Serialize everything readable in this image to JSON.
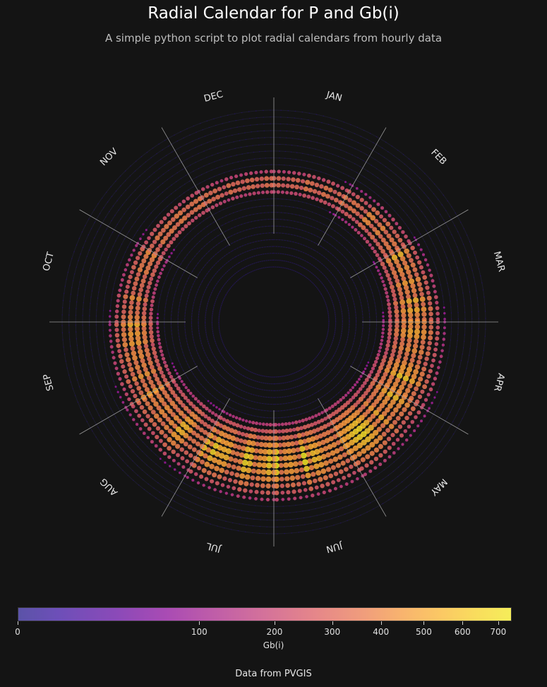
{
  "title": "Radial Calendar for P and Gb(i)",
  "subtitle": "A simple python script to plot radial calendars from hourly data",
  "footnote": "Data from PVGIS",
  "chart_data": {
    "type": "scatter",
    "projection": "polar",
    "title": "Radial Calendar for P and Gb(i)",
    "subtitle": "A simple python script to plot radial calendars from hourly data",
    "angular_axis": "month",
    "radial_axis": "hour of day",
    "direction": "clockwise",
    "start": "top",
    "months": [
      "JAN",
      "FEB",
      "MAR",
      "APR",
      "MAY",
      "JUN",
      "JUL",
      "AUG",
      "SEP",
      "OCT",
      "NOV",
      "DEC"
    ],
    "hours": [
      0,
      1,
      2,
      3,
      4,
      5,
      6,
      7,
      8,
      9,
      10,
      11,
      12,
      13,
      14,
      15,
      16,
      17,
      18,
      19,
      20,
      21,
      22,
      23
    ],
    "grid": true,
    "month_dividers": true,
    "color_variable": "Gb(i)",
    "colormap": "plasma",
    "colorbar": {
      "label": "Gb(i)",
      "position": "bottom",
      "range": [
        0,
        740
      ],
      "ticks": [
        0,
        100,
        200,
        300,
        400,
        500,
        600,
        700
      ],
      "tick_labels": [
        "0",
        "100",
        "200",
        "300",
        "400",
        "500",
        "600",
        "700"
      ],
      "scale": "sqrt"
    },
    "approx_peak_gb_by_month": [
      460,
      520,
      650,
      680,
      700,
      730,
      720,
      680,
      660,
      560,
      470,
      420
    ]
  }
}
